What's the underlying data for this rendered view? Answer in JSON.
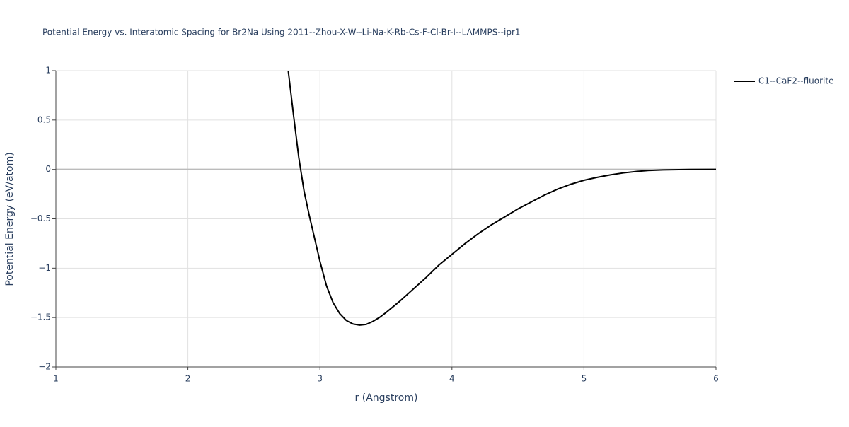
{
  "chart_data": {
    "type": "line",
    "title": "Potential Energy vs. Interatomic Spacing for Br2Na Using 2011--Zhou-X-W--Li-Na-K-Rb-Cs-F-Cl-Br-I--LAMMPS--ipr1",
    "x_label": "r (Angstrom)",
    "y_label": "Potential Energy (eV/atom)",
    "xlim": [
      1,
      6
    ],
    "ylim": [
      -2,
      1
    ],
    "xticks": [
      1,
      2,
      3,
      4,
      5,
      6
    ],
    "yticks": [
      {
        "value": -2,
        "label": "−2"
      },
      {
        "value": -1.5,
        "label": "−1.5"
      },
      {
        "value": -1,
        "label": "−1"
      },
      {
        "value": -0.5,
        "label": "−0.5"
      },
      0,
      0.5,
      1
    ],
    "grid": true,
    "legend": "top-right",
    "x": [
      2.76,
      2.8,
      2.84,
      2.88,
      2.92,
      2.96,
      3.0,
      3.05,
      3.1,
      3.15,
      3.2,
      3.25,
      3.3,
      3.35,
      3.4,
      3.45,
      3.5,
      3.6,
      3.7,
      3.8,
      3.9,
      4.0,
      4.1,
      4.2,
      4.3,
      4.4,
      4.5,
      4.6,
      4.7,
      4.8,
      4.9,
      5.0,
      5.1,
      5.2,
      5.3,
      5.4,
      5.5,
      5.6,
      5.8,
      6.0
    ],
    "series": [
      {
        "name": "C1--CaF2--fluorite",
        "color": "#000000",
        "values": [
          1.0,
          0.55,
          0.12,
          -0.22,
          -0.47,
          -0.7,
          -0.93,
          -1.18,
          -1.35,
          -1.46,
          -1.53,
          -1.565,
          -1.577,
          -1.57,
          -1.54,
          -1.5,
          -1.45,
          -1.34,
          -1.22,
          -1.1,
          -0.97,
          -0.86,
          -0.75,
          -0.65,
          -0.56,
          -0.48,
          -0.4,
          -0.33,
          -0.26,
          -0.2,
          -0.15,
          -0.11,
          -0.08,
          -0.055,
          -0.035,
          -0.02,
          -0.01,
          -0.005,
          -0.001,
          0
        ]
      }
    ]
  }
}
